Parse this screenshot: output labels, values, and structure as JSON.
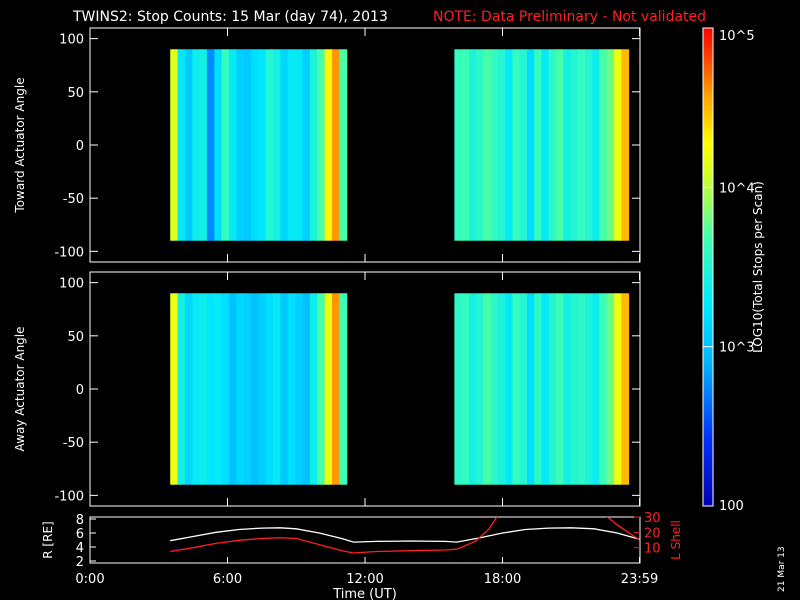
{
  "chart_data": {
    "type": "heatmap",
    "title": "TWINS2: Stop Counts: 15 Mar (day  74), 2013",
    "note": "NOTE: Data Preliminary - Not validated",
    "date_stamp": "21 Mar 13",
    "xlabel": "Time (UT)",
    "x_ticks": [
      "0:00",
      "6:00",
      "12:00",
      "18:00",
      "23:59"
    ],
    "xlim_hours": [
      0,
      24
    ],
    "colorbar": {
      "label": "LOG10(Total Stops per Scan)",
      "range": [
        100,
        100000
      ],
      "scale": "log",
      "ticks": [
        {
          "value": 100,
          "label": "100"
        },
        {
          "value": 1000,
          "label": "10^3"
        },
        {
          "value": 10000,
          "label": "10^4"
        },
        {
          "value": 100000,
          "label": "10^5"
        }
      ]
    },
    "panels": [
      {
        "ylabel": "Toward Actuator Angle",
        "ylim": [
          -110,
          110
        ],
        "y_ticks": [
          100,
          50,
          0,
          -50,
          -100
        ],
        "data_y_range": [
          -90,
          90
        ],
        "data_intervals_hours": [
          [
            3.5,
            11.2
          ],
          [
            15.9,
            23.5
          ]
        ],
        "levels_per_segment": [
          4.15,
          3.3,
          3.05,
          3.35,
          3.4,
          2.75,
          3.2,
          3.6,
          3.3,
          3.1,
          3.05,
          3.2,
          3.25,
          3.5,
          3.4,
          3.15,
          3.3,
          3.3,
          3.1,
          3.45,
          3.7,
          4.3,
          4.6,
          3.7,
          3.6,
          3.65,
          3.45,
          3.55,
          3.7,
          3.6,
          3.5,
          3.3,
          3.6,
          3.5,
          3.2,
          3.6,
          3.3,
          3.55,
          3.7,
          3.4,
          3.5,
          3.6,
          3.5,
          3.35,
          3.7,
          3.8,
          4.2,
          4.5
        ]
      },
      {
        "ylabel": "Away Actuator Angle",
        "ylim": [
          -110,
          110
        ],
        "y_ticks": [
          100,
          50,
          0,
          -50,
          -100
        ],
        "data_y_range": [
          -90,
          90
        ],
        "data_intervals_hours": [
          [
            3.5,
            11.2
          ],
          [
            15.9,
            23.5
          ]
        ],
        "levels_per_segment": [
          4.2,
          3.4,
          3.15,
          3.3,
          3.35,
          3.25,
          3.3,
          3.2,
          3.0,
          3.15,
          3.1,
          3.0,
          3.1,
          3.2,
          3.3,
          3.05,
          3.2,
          3.1,
          3.0,
          3.35,
          3.7,
          4.2,
          4.6,
          3.65,
          3.55,
          3.6,
          3.4,
          3.5,
          3.7,
          3.55,
          3.45,
          3.3,
          3.6,
          3.5,
          3.2,
          3.55,
          3.3,
          3.5,
          3.65,
          3.4,
          3.5,
          3.55,
          3.45,
          3.35,
          3.65,
          3.8,
          4.2,
          4.5
        ]
      }
    ],
    "orbit_panel": {
      "ylabel_left": "R [RE]",
      "ylabel_right": "L Shell",
      "left_ticks": [
        2,
        4,
        6,
        8
      ],
      "left_range": [
        2,
        8
      ],
      "right_ticks": [
        10,
        20,
        30
      ],
      "right_range": [
        0,
        30
      ],
      "series": [
        {
          "name": "R [RE]",
          "color": "#ffffff",
          "x": [
            3.5,
            4.5,
            5.5,
            6.5,
            7.5,
            8.3,
            9.0,
            10.0,
            11.0,
            11.5,
            12.5,
            14.0,
            15.5,
            16.0,
            17.0,
            18.0,
            19.0,
            20.0,
            21.0,
            22.0,
            23.0,
            23.98
          ],
          "y": [
            4.9,
            5.5,
            6.1,
            6.5,
            6.7,
            6.75,
            6.6,
            6.0,
            5.2,
            4.7,
            4.8,
            4.85,
            4.8,
            4.7,
            5.3,
            6.0,
            6.5,
            6.7,
            6.75,
            6.6,
            6.0,
            5.1
          ]
        },
        {
          "name": "L Shell",
          "color": "#ff2020",
          "x": [
            3.5,
            4.5,
            5.5,
            6.5,
            7.5,
            8.3,
            9.0,
            10.0,
            11.0,
            11.5,
            12.5,
            14.0,
            15.5,
            16.0,
            16.8,
            17.4,
            17.8,
            22.5,
            23.0,
            23.98
          ],
          "y": [
            7.5,
            10,
            12.8,
            14.8,
            16,
            16.5,
            16,
            12,
            8,
            6.5,
            7.5,
            8,
            8.5,
            9,
            14,
            22,
            31,
            31,
            25,
            15
          ]
        }
      ]
    }
  }
}
